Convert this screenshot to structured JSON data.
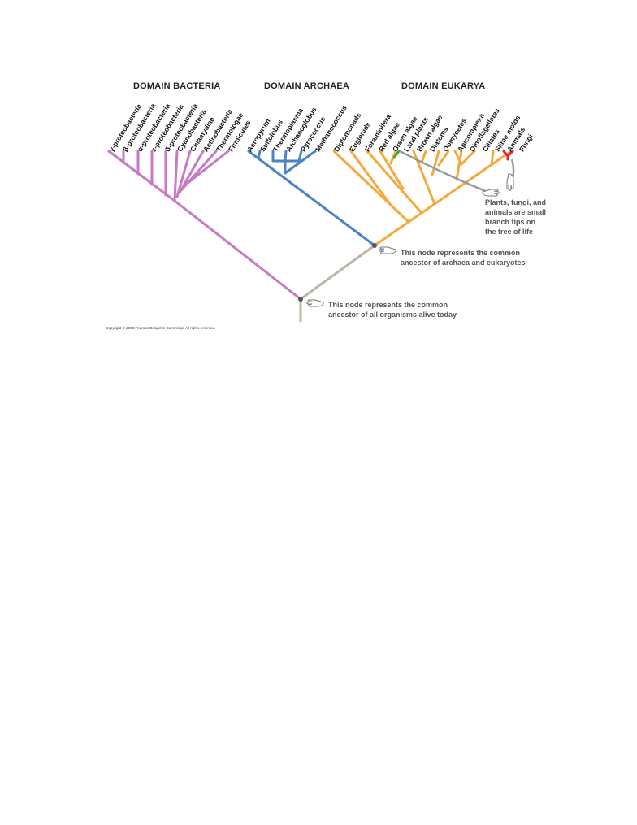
{
  "domains": {
    "bacteria": {
      "title": "DOMAIN BACTERIA",
      "taxa": [
        "γ-proteobacteria",
        "β-proteobacteria",
        "α-proteobacteria",
        "ε-proteobacteria",
        "δ-proteobacteria",
        "Cyanobacteria",
        "Chlamydiae",
        "Actinobacteria",
        "Thermotogae",
        "Firmicutes"
      ]
    },
    "archaea": {
      "title": "DOMAIN ARCHAEA",
      "taxa": [
        "Aeropyrum",
        "Sulfolobus",
        "Thermoplasma",
        "Archaeoglobus",
        "Pyrococcus",
        "Methanococcus"
      ]
    },
    "eukarya": {
      "title": "DOMAIN EUKARYA",
      "taxa": [
        "Diplomonads",
        "Euglenids",
        "Foraminifera",
        "Red algae",
        "Green algae",
        "Land plants",
        "Brown algae",
        "Diatoms",
        "Oomycetes",
        "Apicomplexa",
        "Dinoflagellates",
        "Ciliates",
        "Slime molds",
        "Animals",
        "Fungi"
      ]
    }
  },
  "annotations": {
    "small_tips": "Plants, fungi, and\nanimals are small\nbranch tips on\nthe tree of life",
    "archaea_eukaryote_node": "This node represents the common\nancestor of archaea and eukaryotes",
    "root_node": "This node represents the common\nancestor of all organisms alive today"
  },
  "copyright": "Copyright © 2008 Pearson Benjamin Cummings. All rights reserved.",
  "colors": {
    "bacteria": "#c879c6",
    "archaea": "#4a84c8",
    "eukarya": "#f5a93c",
    "root": "#bdb5a8",
    "plants": "#3fa640",
    "fungi_animals": "#d6263f"
  },
  "icons": [
    "pointing-hand-icon"
  ]
}
